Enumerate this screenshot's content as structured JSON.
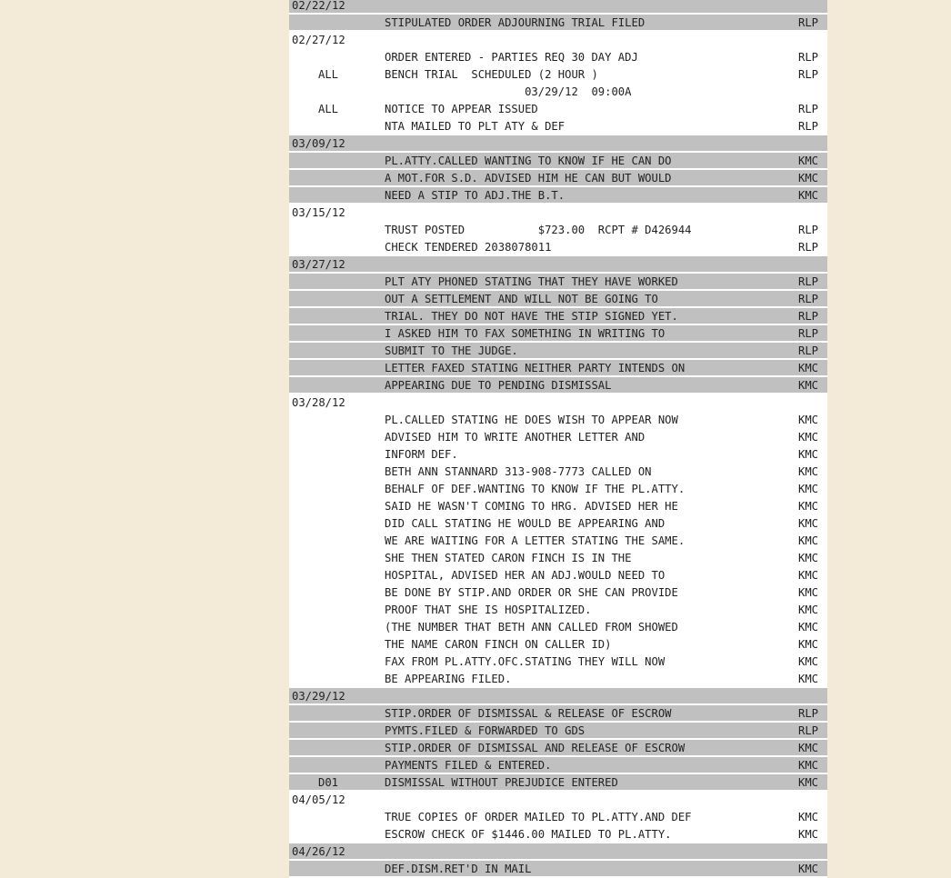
{
  "colors": {
    "background": "#f3ead8",
    "shaded_row": "#c0c0c0",
    "table": "#ffffff"
  },
  "entries": [
    {
      "date": "02/22/12",
      "shaded": true,
      "lines": [
        {
          "code": "",
          "text": "STIPULATED ORDER ADJOURNING TRIAL FILED",
          "init": "RLP"
        }
      ]
    },
    {
      "date": "02/27/12",
      "shaded": false,
      "lines": [
        {
          "code": "",
          "text": "ORDER ENTERED - PARTIES REQ 30 DAY ADJ",
          "init": "RLP"
        },
        {
          "code": "ALL",
          "text": "BENCH TRIAL  SCHEDULED (2 HOUR )",
          "init": "RLP"
        },
        {
          "code": "",
          "text": "                     03/29/12  09:00A",
          "init": ""
        },
        {
          "code": "ALL",
          "text": "NOTICE TO APPEAR ISSUED",
          "init": "RLP"
        },
        {
          "code": "",
          "text": "NTA MAILED TO PLT ATY & DEF",
          "init": "RLP"
        }
      ]
    },
    {
      "date": "03/09/12",
      "shaded": true,
      "lines": [
        {
          "code": "",
          "text": "PL.ATTY.CALLED WANTING TO KNOW IF HE CAN DO",
          "init": "KMC"
        },
        {
          "code": "",
          "text": "A MOT.FOR S.D. ADVISED HIM HE CAN BUT WOULD",
          "init": "KMC"
        },
        {
          "code": "",
          "text": "NEED A STIP TO ADJ.THE B.T.",
          "init": "KMC"
        }
      ]
    },
    {
      "date": "03/15/12",
      "shaded": false,
      "lines": [
        {
          "code": "",
          "text": "TRUST POSTED           $723.00  RCPT # D426944",
          "init": "RLP"
        },
        {
          "code": "",
          "text": "CHECK TENDERED 2038078011",
          "init": "RLP"
        }
      ]
    },
    {
      "date": "03/27/12",
      "shaded": true,
      "lines": [
        {
          "code": "",
          "text": "PLT ATY PHONED STATING THAT THEY HAVE WORKED",
          "init": "RLP"
        },
        {
          "code": "",
          "text": "OUT A SETTLEMENT AND WILL NOT BE GOING TO",
          "init": "RLP"
        },
        {
          "code": "",
          "text": "TRIAL. THEY DO NOT HAVE THE STIP SIGNED YET.",
          "init": "RLP"
        },
        {
          "code": "",
          "text": "I ASKED HIM TO FAX SOMETHING IN WRITING TO",
          "init": "RLP"
        },
        {
          "code": "",
          "text": "SUBMIT TO THE JUDGE.",
          "init": "RLP"
        },
        {
          "code": "",
          "text": "LETTER FAXED STATING NEITHER PARTY INTENDS ON",
          "init": "KMC"
        },
        {
          "code": "",
          "text": "APPEARING DUE TO PENDING DISMISSAL",
          "init": "KMC"
        }
      ]
    },
    {
      "date": "03/28/12",
      "shaded": false,
      "lines": [
        {
          "code": "",
          "text": "PL.CALLED STATING HE DOES WISH TO APPEAR NOW",
          "init": "KMC"
        },
        {
          "code": "",
          "text": "ADVISED HIM TO WRITE ANOTHER LETTER AND",
          "init": "KMC"
        },
        {
          "code": "",
          "text": "INFORM DEF.",
          "init": "KMC"
        },
        {
          "code": "",
          "text": "BETH ANN STANNARD 313-908-7773 CALLED ON",
          "init": "KMC"
        },
        {
          "code": "",
          "text": "BEHALF OF DEF.WANTING TO KNOW IF THE PL.ATTY.",
          "init": "KMC"
        },
        {
          "code": "",
          "text": "SAID HE WASN'T COMING TO HRG. ADVISED HER HE",
          "init": "KMC"
        },
        {
          "code": "",
          "text": "DID CALL STATING HE WOULD BE APPEARING AND",
          "init": "KMC"
        },
        {
          "code": "",
          "text": "WE ARE WAITING FOR A LETTER STATING THE SAME.",
          "init": "KMC"
        },
        {
          "code": "",
          "text": "SHE THEN STATED CARON FINCH IS IN THE",
          "init": "KMC"
        },
        {
          "code": "",
          "text": "HOSPITAL, ADVISED HER AN ADJ.WOULD NEED TO",
          "init": "KMC"
        },
        {
          "code": "",
          "text": "BE DONE BY STIP.AND ORDER OR SHE CAN PROVIDE",
          "init": "KMC"
        },
        {
          "code": "",
          "text": "PROOF THAT SHE IS HOSPITALIZED.",
          "init": "KMC"
        },
        {
          "code": "",
          "text": "(THE NUMBER THAT BETH ANN CALLED FROM SHOWED",
          "init": "KMC"
        },
        {
          "code": "",
          "text": "THE NAME CARON FINCH ON CALLER ID)",
          "init": "KMC"
        },
        {
          "code": "",
          "text": "FAX FROM PL.ATTY.OFC.STATING THEY WILL NOW",
          "init": "KMC"
        },
        {
          "code": "",
          "text": "BE APPEARING FILED.",
          "init": "KMC"
        }
      ]
    },
    {
      "date": "03/29/12",
      "shaded": true,
      "lines": [
        {
          "code": "",
          "text": "STIP.ORDER OF DISMISSAL & RELEASE OF ESCROW",
          "init": "RLP"
        },
        {
          "code": "",
          "text": "PYMTS.FILED & FORWARDED TO GDS",
          "init": "RLP"
        },
        {
          "code": "",
          "text": "STIP.ORDER OF DISMISSAL AND RELEASE OF ESCROW",
          "init": "KMC"
        },
        {
          "code": "",
          "text": "PAYMENTS FILED & ENTERED.",
          "init": "KMC"
        },
        {
          "code": "D01",
          "text": "DISMISSAL WITHOUT PREJUDICE ENTERED",
          "init": "KMC"
        }
      ]
    },
    {
      "date": "04/05/12",
      "shaded": false,
      "lines": [
        {
          "code": "",
          "text": "TRUE COPIES OF ORDER MAILED TO PL.ATTY.AND DEF",
          "init": "KMC"
        },
        {
          "code": "",
          "text": "ESCROW CHECK OF $1446.00 MAILED TO PL.ATTY.",
          "init": "KMC"
        }
      ]
    },
    {
      "date": "04/26/12",
      "shaded": true,
      "lines": [
        {
          "code": "",
          "text": "DEF.DISM.RET'D IN MAIL",
          "init": "KMC"
        }
      ]
    }
  ]
}
